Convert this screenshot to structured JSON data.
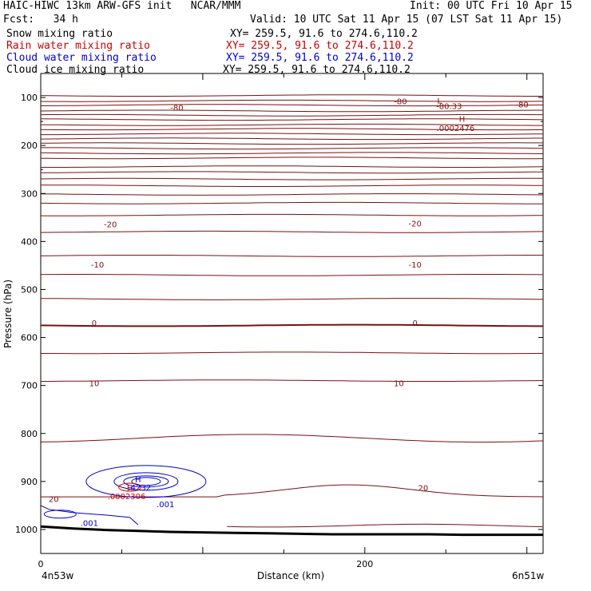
{
  "header": {
    "title": "HAIC-HIWC 13km ARW-GFS init   NCAR/MMM",
    "init": "Init: 00 UTC Fri 10 Apr 15",
    "fcst": "Fcst:   34 h",
    "valid": "Valid: 10 UTC Sat 11 Apr 15 (07 LST Sat 11 Apr 15)",
    "fields": [
      {
        "name": "Snow mixing ratio",
        "xy": "XY= 259.5, 91.6 to 274.6,110.2",
        "color": "#000000"
      },
      {
        "name": "Rain water mixing ratio",
        "xy": "XY= 259.5, 91.6 to 274.6,110.2",
        "color": "#cc0000"
      },
      {
        "name": "Cloud water mixing ratio",
        "xy": "XY= 259.5, 91.6 to 274.6,110.2",
        "color": "#0000cc"
      },
      {
        "name": "Cloud ice mixing ratio",
        "xy": "XY= 259.5, 91.6 to 274.6,110.2",
        "color": "#000000"
      }
    ]
  },
  "chart_data": {
    "type": "line",
    "xlabel": "Distance (km)",
    "ylabel": "Pressure (hPa)",
    "x_range": [
      0,
      310
    ],
    "y_range": [
      50,
      1050
    ],
    "y_scale": "linear, inverted",
    "x_ticks": [
      "0",
      "200"
    ],
    "y_ticks": [
      "100",
      "200",
      "300",
      "400",
      "500",
      "600",
      "700",
      "800",
      "900",
      "1000"
    ],
    "x_end_labels": {
      "left": "4n53w",
      "right": "6n51w"
    },
    "temperature_contour_color": "#7a1010",
    "temperature_contours_pressure": [
      96,
      107,
      116,
      128,
      137,
      146,
      157,
      166,
      176,
      186,
      196,
      206,
      216,
      226,
      244,
      256,
      270,
      284,
      302,
      320,
      345,
      380,
      430,
      470,
      520,
      575,
      632,
      690,
      810,
      932
    ],
    "temperature_contour_labels": [
      {
        "text": "-80",
        "x": 84,
        "p": 121
      },
      {
        "text": "-80",
        "x": 222,
        "p": 107
      },
      {
        "text": "-80",
        "x": 297,
        "p": 114
      },
      {
        "text": "-80.33",
        "x": 252,
        "p": 117
      },
      {
        "text": "L",
        "x": 246,
        "p": 106
      },
      {
        "text": "H",
        "x": 260,
        "p": 144
      },
      {
        "text": ".0002476",
        "x": 256,
        "p": 163
      },
      {
        "text": "-20",
        "x": 43,
        "p": 364
      },
      {
        "text": "-20",
        "x": 231,
        "p": 362
      },
      {
        "text": "-10",
        "x": 35,
        "p": 448
      },
      {
        "text": "-10",
        "x": 231,
        "p": 448
      },
      {
        "text": "0",
        "x": 33,
        "p": 569
      },
      {
        "text": "0",
        "x": 231,
        "p": 569
      },
      {
        "text": "10",
        "x": 33,
        "p": 695
      },
      {
        "text": "10",
        "x": 221,
        "p": 695
      },
      {
        "text": "20",
        "x": 8,
        "p": 936
      },
      {
        "text": "20",
        "x": 236,
        "p": 913
      }
    ],
    "rain_labels": [
      {
        "text": "H",
        "x": 55,
        "p": 913
      },
      {
        "text": ".0002306",
        "x": 53,
        "p": 930
      }
    ],
    "cloud_water_labels": [
      {
        "text": "H",
        "x": 60,
        "p": 895
      },
      {
        "text": ".4232",
        "x": 61,
        "p": 912
      },
      {
        "text": ".001",
        "x": 77,
        "p": 947
      },
      {
        "text": ".001",
        "x": 30,
        "p": 986
      }
    ],
    "terrain": [
      [
        0,
        994
      ],
      [
        20,
        998
      ],
      [
        40,
        1001
      ],
      [
        60,
        1003
      ],
      [
        80,
        1005
      ],
      [
        100,
        1006
      ],
      [
        120,
        1007
      ],
      [
        140,
        1008
      ],
      [
        160,
        1009
      ],
      [
        180,
        1010
      ],
      [
        200,
        1010
      ],
      [
        220,
        1010
      ],
      [
        240,
        1010
      ],
      [
        260,
        1011
      ],
      [
        280,
        1011
      ],
      [
        310,
        1011
      ]
    ]
  }
}
